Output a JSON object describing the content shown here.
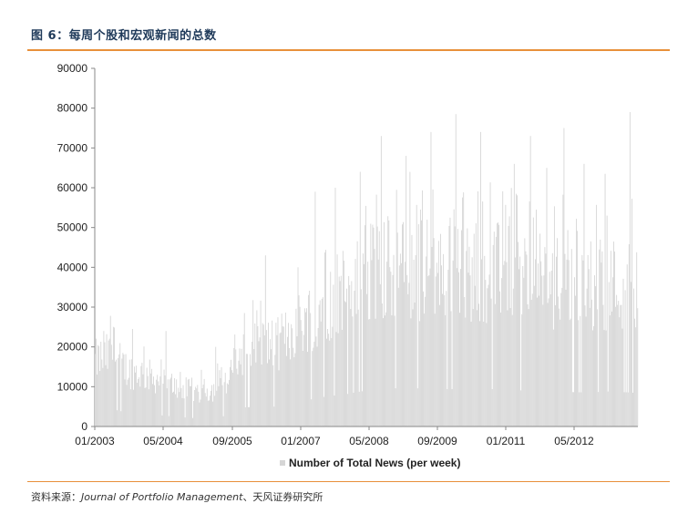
{
  "figure_title": "图 6：每周个股和宏观新闻的总数",
  "source": {
    "label": "资料来源：",
    "italic": "Journal of Portfolio Management",
    "rest": "、天风证券研究所"
  },
  "colors": {
    "bar": "#d6d6d6",
    "accent": "#e8903a",
    "title": "#1f3a5a"
  },
  "chart_data": {
    "type": "bar",
    "ylim": [
      0,
      90000
    ],
    "yticks": [
      0,
      10000,
      20000,
      30000,
      40000,
      50000,
      60000,
      70000,
      80000,
      90000
    ],
    "ytick_labels": [
      "0",
      "10000",
      "20000",
      "30000",
      "40000",
      "50000",
      "60000",
      "70000",
      "80000",
      "90000"
    ],
    "xtick_labels": [
      "01/2003",
      "05/2004",
      "09/2005",
      "01/2007",
      "05/2008",
      "09/2009",
      "01/2011",
      "05/2012"
    ],
    "x_start": "2003-01",
    "x_end": "2013-12",
    "legend": "Number of Total News (per week)",
    "legend_position": "bottom",
    "anchors": [
      [
        "2003-01",
        20000
      ],
      [
        "2003-05",
        22000
      ],
      [
        "2003-09",
        17000
      ],
      [
        "2004-01",
        16000
      ],
      [
        "2004-05",
        14000
      ],
      [
        "2004-09",
        12000
      ],
      [
        "2005-01",
        10500
      ],
      [
        "2005-05",
        11000
      ],
      [
        "2005-09",
        13500
      ],
      [
        "2006-01",
        24000
      ],
      [
        "2006-05",
        25000
      ],
      [
        "2006-09",
        25000
      ],
      [
        "2007-01",
        30000
      ],
      [
        "2007-05",
        34000
      ],
      [
        "2007-09",
        38000
      ],
      [
        "2008-01",
        40000
      ],
      [
        "2008-05",
        44000
      ],
      [
        "2008-09",
        47000
      ],
      [
        "2009-01",
        48000
      ],
      [
        "2009-05",
        48000
      ],
      [
        "2009-09",
        48000
      ],
      [
        "2010-01",
        47000
      ],
      [
        "2010-05",
        47000
      ],
      [
        "2010-09",
        46000
      ],
      [
        "2011-01",
        47000
      ],
      [
        "2011-05",
        46000
      ],
      [
        "2011-09",
        45000
      ],
      [
        "2012-01",
        44000
      ],
      [
        "2012-05",
        44000
      ],
      [
        "2012-09",
        43000
      ],
      [
        "2013-01",
        43000
      ],
      [
        "2013-05",
        44000
      ],
      [
        "2013-09",
        43000
      ],
      [
        "2013-12",
        42000
      ]
    ],
    "peaks": [
      [
        "2003-03",
        24000
      ],
      [
        "2003-10",
        24500
      ],
      [
        "2004-06",
        24000
      ],
      [
        "2005-06",
        20000
      ],
      [
        "2006-01",
        28500
      ],
      [
        "2006-06",
        43000
      ],
      [
        "2007-02",
        40000
      ],
      [
        "2007-06",
        59000
      ],
      [
        "2007-11",
        60000
      ],
      [
        "2008-05",
        64000
      ],
      [
        "2008-10",
        73000
      ],
      [
        "2009-04",
        68000
      ],
      [
        "2009-10",
        74000
      ],
      [
        "2010-04",
        78500
      ],
      [
        "2010-10",
        74000
      ],
      [
        "2011-06",
        66000
      ],
      [
        "2011-10",
        73000
      ],
      [
        "2012-02",
        65000
      ],
      [
        "2012-06",
        75000
      ],
      [
        "2012-11",
        66000
      ],
      [
        "2013-04",
        63500
      ],
      [
        "2013-10",
        79000
      ]
    ]
  }
}
